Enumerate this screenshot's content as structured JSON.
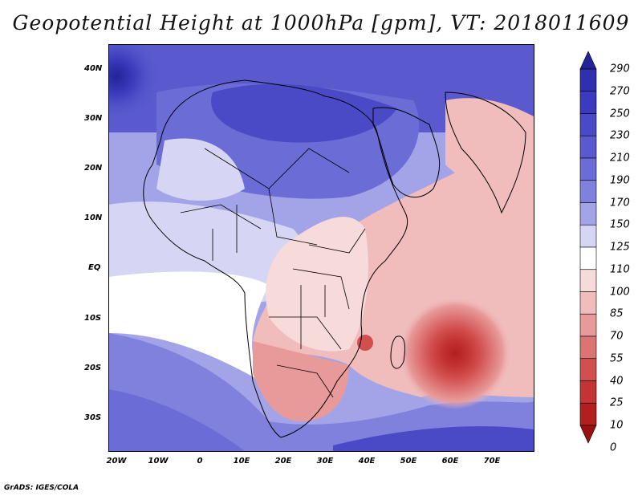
{
  "title": "Geopotential Height at 1000hPa [gpm], VT: 2018011609",
  "credit": "GrADS: IGES/COLA",
  "lat_labels": [
    "40N",
    "30N",
    "20N",
    "10N",
    "EQ",
    "10S",
    "20S",
    "30S"
  ],
  "lon_labels": [
    "20W",
    "10W",
    "0",
    "10E",
    "20E",
    "30E",
    "40E",
    "50E",
    "60E",
    "70E"
  ],
  "colorbar": {
    "labels": [
      "290",
      "270",
      "250",
      "230",
      "210",
      "190",
      "170",
      "150",
      "125",
      "110",
      "100",
      "85",
      "70",
      "55",
      "40",
      "25",
      "10",
      "0"
    ],
    "colors": [
      "#23239a",
      "#2f2fb0",
      "#3b3bbd",
      "#4a4ac6",
      "#5a5ace",
      "#6c6cd6",
      "#8080dd",
      "#a3a3e8",
      "#d6d6f4",
      "#ffffff",
      "#f7dada",
      "#f0bcbc",
      "#e89a9a",
      "#dd7474",
      "#d24f4f",
      "#c53434",
      "#b21f1f",
      "#9a1010"
    ]
  },
  "chart_data": {
    "type": "heatmap",
    "title": "Geopotential Height at 1000hPa [gpm], VT: 2018011609",
    "variable": "Geopotential Height",
    "units": "gpm",
    "level": "1000hPa",
    "valid_time": "2018011609",
    "lon_range": [
      -23,
      80
    ],
    "lat_range": [
      -37,
      45
    ],
    "levels": [
      0,
      10,
      25,
      40,
      55,
      70,
      85,
      100,
      110,
      125,
      150,
      170,
      190,
      210,
      230,
      250,
      270,
      290
    ]
  }
}
